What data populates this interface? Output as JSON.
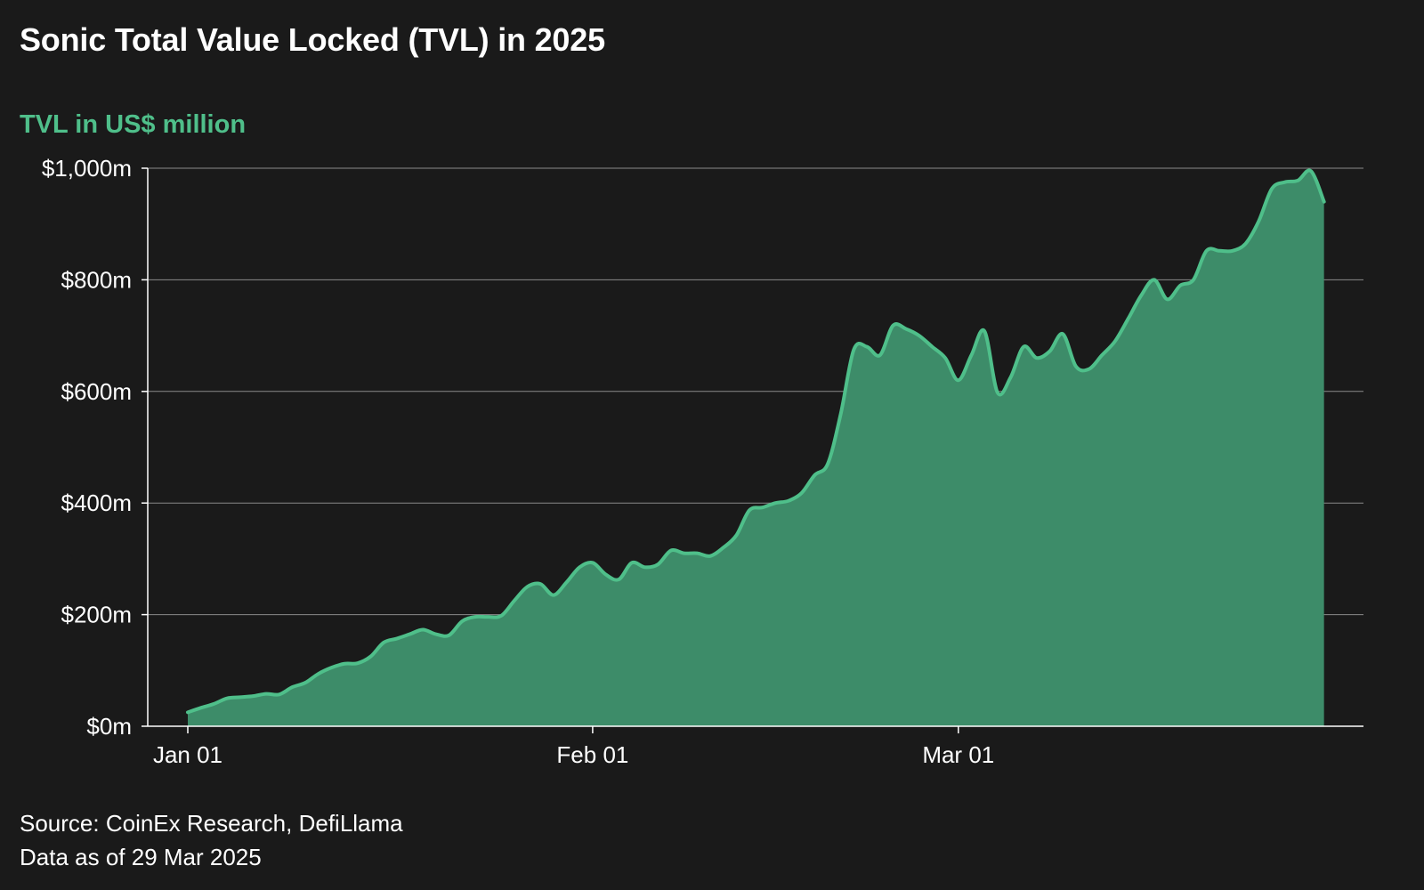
{
  "colors": {
    "background": "#1a1a1a",
    "accent": "#4fbf8a",
    "area_fill": "#3d8c69",
    "gridline": "#8a8a8a",
    "text": "#ffffff"
  },
  "chart_data": {
    "type": "area",
    "title": "Sonic Total Value Locked (TVL) in 2025",
    "subtitle": "TVL in US$ million",
    "xlabel": "",
    "ylabel": "",
    "x_range": [
      "2025-01-01",
      "2025-03-31"
    ],
    "ylim": [
      0,
      1000
    ],
    "y_ticks": [
      0,
      200,
      400,
      600,
      800,
      1000
    ],
    "y_tick_labels": [
      "$0m",
      "$200m",
      "$400m",
      "$600m",
      "$800m",
      "$1,000m"
    ],
    "x_ticks": [
      "2025-01-01",
      "2025-02-01",
      "2025-03-01"
    ],
    "x_tick_labels": [
      "Jan 01",
      "Feb 01",
      "Mar 01"
    ],
    "grid": true,
    "legend": "none",
    "series": [
      {
        "points": [
          [
            "2025-01-01",
            25
          ],
          [
            "2025-01-02",
            33
          ],
          [
            "2025-01-03",
            40
          ],
          [
            "2025-01-04",
            50
          ],
          [
            "2025-01-05",
            52
          ],
          [
            "2025-01-06",
            54
          ],
          [
            "2025-01-07",
            58
          ],
          [
            "2025-01-08",
            57
          ],
          [
            "2025-01-09",
            70
          ],
          [
            "2025-01-10",
            78
          ],
          [
            "2025-01-11",
            94
          ],
          [
            "2025-01-12",
            105
          ],
          [
            "2025-01-13",
            112
          ],
          [
            "2025-01-14",
            113
          ],
          [
            "2025-01-15",
            125
          ],
          [
            "2025-01-16",
            150
          ],
          [
            "2025-01-17",
            157
          ],
          [
            "2025-01-18",
            165
          ],
          [
            "2025-01-19",
            173
          ],
          [
            "2025-01-20",
            165
          ],
          [
            "2025-01-21",
            163
          ],
          [
            "2025-01-22",
            188
          ],
          [
            "2025-01-23",
            196
          ],
          [
            "2025-01-24",
            196
          ],
          [
            "2025-01-25",
            198
          ],
          [
            "2025-01-26",
            225
          ],
          [
            "2025-01-27",
            250
          ],
          [
            "2025-01-28",
            255
          ],
          [
            "2025-01-29",
            235
          ],
          [
            "2025-01-30",
            258
          ],
          [
            "2025-01-31",
            285
          ],
          [
            "2025-02-01",
            293
          ],
          [
            "2025-02-02",
            272
          ],
          [
            "2025-02-03",
            263
          ],
          [
            "2025-02-04",
            293
          ],
          [
            "2025-02-05",
            285
          ],
          [
            "2025-02-06",
            290
          ],
          [
            "2025-02-07",
            315
          ],
          [
            "2025-02-08",
            310
          ],
          [
            "2025-02-09",
            310
          ],
          [
            "2025-02-10",
            305
          ],
          [
            "2025-02-11",
            320
          ],
          [
            "2025-02-12",
            342
          ],
          [
            "2025-02-13",
            387
          ],
          [
            "2025-02-14",
            392
          ],
          [
            "2025-02-15",
            400
          ],
          [
            "2025-02-16",
            404
          ],
          [
            "2025-02-17",
            418
          ],
          [
            "2025-02-18",
            450
          ],
          [
            "2025-02-19",
            470
          ],
          [
            "2025-02-20",
            560
          ],
          [
            "2025-02-21",
            675
          ],
          [
            "2025-02-22",
            680
          ],
          [
            "2025-02-23",
            665
          ],
          [
            "2025-02-24",
            718
          ],
          [
            "2025-02-25",
            712
          ],
          [
            "2025-02-26",
            700
          ],
          [
            "2025-02-27",
            680
          ],
          [
            "2025-02-28",
            660
          ],
          [
            "2025-03-01",
            620
          ],
          [
            "2025-03-02",
            665
          ],
          [
            "2025-03-03",
            708
          ],
          [
            "2025-03-04",
            598
          ],
          [
            "2025-03-05",
            625
          ],
          [
            "2025-03-06",
            680
          ],
          [
            "2025-03-07",
            660
          ],
          [
            "2025-03-08",
            672
          ],
          [
            "2025-03-09",
            703
          ],
          [
            "2025-03-10",
            645
          ],
          [
            "2025-03-11",
            640
          ],
          [
            "2025-03-12",
            665
          ],
          [
            "2025-03-13",
            690
          ],
          [
            "2025-03-14",
            730
          ],
          [
            "2025-03-15",
            772
          ],
          [
            "2025-03-16",
            800
          ],
          [
            "2025-03-17",
            765
          ],
          [
            "2025-03-18",
            790
          ],
          [
            "2025-03-19",
            800
          ],
          [
            "2025-03-20",
            852
          ],
          [
            "2025-03-21",
            852
          ],
          [
            "2025-03-22",
            852
          ],
          [
            "2025-03-23",
            865
          ],
          [
            "2025-03-24",
            905
          ],
          [
            "2025-03-25",
            963
          ],
          [
            "2025-03-26",
            975
          ],
          [
            "2025-03-27",
            978
          ],
          [
            "2025-03-28",
            995
          ],
          [
            "2025-03-29",
            940
          ]
        ]
      }
    ]
  },
  "footer": {
    "source": "Source: CoinEx Research, DefiLlama",
    "data_as_of": "Data as of 29 Mar 2025"
  }
}
